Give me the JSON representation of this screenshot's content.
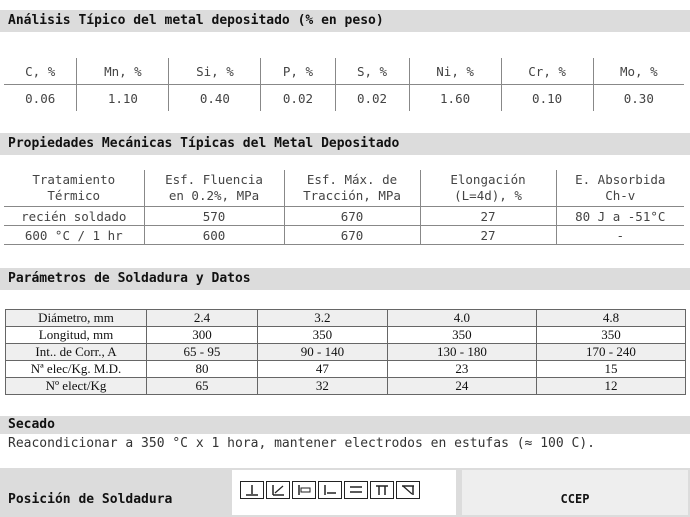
{
  "sections": {
    "chem_title": "Análisis Típico del metal depositado (% en peso)",
    "mech_title": "Propiedades Mecánicas Típicas del Metal Depositado",
    "weld_title": "Parámetros de Soldadura y Datos",
    "dry_title": "Secado",
    "position_title": "Posición de Soldadura"
  },
  "chemical": {
    "headers": [
      "C, %",
      "Mn, %",
      "Si, %",
      "P, %",
      "S, %",
      "Ni, %",
      "Cr, %",
      "Mo, %"
    ],
    "values": [
      "0.06",
      "1.10",
      "0.40",
      "0.02",
      "0.02",
      "1.60",
      "0.10",
      "0.30"
    ]
  },
  "mechanical": {
    "headers": [
      [
        "Tratamiento",
        "Térmico"
      ],
      [
        "Esf. Fluencia",
        "en 0.2%, MPa"
      ],
      [
        "Esf. Máx. de",
        "Tracción, MPa"
      ],
      [
        "Elongación",
        "(L=4d), %"
      ],
      [
        "E. Absorbida",
        "Ch-v"
      ]
    ],
    "rows": [
      [
        "recién soldado",
        "570",
        "670",
        "27",
        "80 J a -51°C"
      ],
      [
        "600 °C / 1 hr",
        "600",
        "670",
        "27",
        "-"
      ]
    ]
  },
  "welding": {
    "rows": [
      [
        "Diámetro, mm",
        "2.4",
        "3.2",
        "4.0",
        "4.8"
      ],
      [
        "Longitud, mm",
        "300",
        "350",
        "350",
        "350"
      ],
      [
        "Int.. de Corr., A",
        "65 - 95",
        "90 - 140",
        "130 - 180",
        "170 - 240"
      ],
      [
        "Nª elec/Kg. M.D.",
        "80",
        "47",
        "23",
        "15"
      ],
      [
        "Nº elect/Kg",
        "65",
        "32",
        "24",
        "12"
      ]
    ]
  },
  "drying": {
    "text": "Reacondicionar a 350 °C x 1 hora, mantener electrodos en estufas (≈ 100 C)."
  },
  "position": {
    "icons": [
      "flat-position-icon",
      "horizontal-fillet-icon",
      "horizontal-position-icon",
      "vertical-position-icon",
      "overhead-position-icon",
      "vertical-up-icon",
      "vertical-down-icon"
    ],
    "standard": "CCEP"
  }
}
